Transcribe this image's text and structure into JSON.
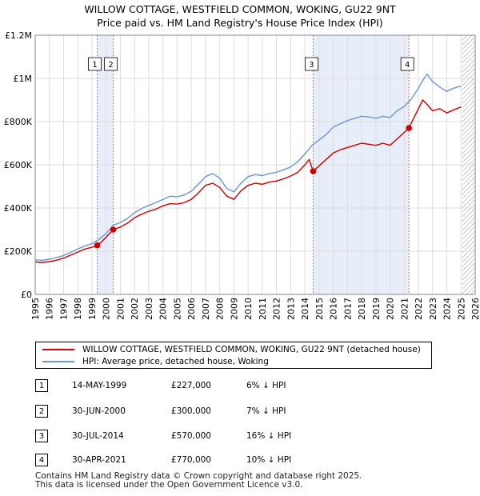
{
  "title_line1": "WILLOW COTTAGE, WESTFIELD COMMON, WOKING, GU22 9NT",
  "title_line2": "Price paid vs. HM Land Registry's House Price Index (HPI)",
  "chart_data": {
    "type": "line",
    "title": "Price paid vs. HM Land Registry's House Price Index (HPI)",
    "xlabel": "",
    "ylabel": "",
    "xlim": [
      1995,
      2026
    ],
    "ylim": [
      0,
      1200000
    ],
    "y_ticks": [
      0,
      200000,
      400000,
      600000,
      800000,
      1000000,
      1200000
    ],
    "y_tick_labels": [
      "£0",
      "£200K",
      "£400K",
      "£600K",
      "£800K",
      "£1M",
      "£1.2M"
    ],
    "x_ticks": [
      1995,
      1996,
      1997,
      1998,
      1999,
      2000,
      2001,
      2002,
      2003,
      2004,
      2005,
      2006,
      2007,
      2008,
      2009,
      2010,
      2011,
      2012,
      2013,
      2014,
      2015,
      2016,
      2017,
      2018,
      2019,
      2020,
      2021,
      2022,
      2023,
      2024,
      2025,
      2026
    ],
    "x_tick_labels": [
      "1995",
      "1996",
      "1997",
      "1998",
      "1999",
      "2000",
      "2001",
      "2002",
      "2003",
      "2004",
      "2005",
      "2006",
      "2007",
      "2008",
      "2009",
      "2010",
      "2011",
      "2012",
      "2013",
      "2014",
      "2015",
      "2016",
      "2017",
      "2018",
      "2019",
      "2020",
      "2021",
      "2022",
      "2023",
      "2024",
      "2025",
      "2026"
    ],
    "grid": true,
    "shaded_ranges": [
      [
        1999.37,
        2000.5
      ],
      [
        2014.58,
        2021.33
      ]
    ],
    "future_hatch_from": 2025.1,
    "series": [
      {
        "name": "WILLOW COTTAGE, WESTFIELD COMMON, WOKING, GU22 9NT (detached house)",
        "color": "#cc0000",
        "x": [
          1995.0,
          1995.5,
          1996.0,
          1996.5,
          1997.0,
          1997.5,
          1998.0,
          1998.5,
          1999.0,
          1999.37,
          1999.7,
          2000.0,
          2000.5,
          2001.0,
          2001.5,
          2002.0,
          2002.5,
          2003.0,
          2003.5,
          2004.0,
          2004.5,
          2005.0,
          2005.5,
          2006.0,
          2006.5,
          2007.0,
          2007.5,
          2008.0,
          2008.5,
          2009.0,
          2009.5,
          2010.0,
          2010.5,
          2011.0,
          2011.5,
          2012.0,
          2012.5,
          2013.0,
          2013.5,
          2014.0,
          2014.3,
          2014.58,
          2015.0,
          2015.5,
          2016.0,
          2016.5,
          2017.0,
          2017.5,
          2018.0,
          2018.5,
          2019.0,
          2019.5,
          2020.0,
          2020.5,
          2021.0,
          2021.33,
          2021.7,
          2022.0,
          2022.3,
          2022.6,
          2023.0,
          2023.5,
          2024.0,
          2024.5,
          2025.0
        ],
        "values": [
          150000,
          148000,
          152000,
          158000,
          168000,
          182000,
          196000,
          210000,
          218000,
          227000,
          245000,
          265000,
          300000,
          312000,
          330000,
          355000,
          372000,
          385000,
          395000,
          410000,
          420000,
          418000,
          425000,
          440000,
          470000,
          505000,
          515000,
          495000,
          455000,
          440000,
          480000,
          505000,
          515000,
          510000,
          520000,
          525000,
          535000,
          548000,
          565000,
          600000,
          625000,
          570000,
          595000,
          625000,
          655000,
          670000,
          680000,
          690000,
          700000,
          695000,
          690000,
          700000,
          690000,
          720000,
          750000,
          770000,
          820000,
          860000,
          900000,
          880000,
          850000,
          860000,
          840000,
          855000,
          868000
        ]
      },
      {
        "name": "HPI: Average price, detached house, Woking",
        "color": "#6b96cf",
        "x": [
          1995.0,
          1995.5,
          1996.0,
          1996.5,
          1997.0,
          1997.5,
          1998.0,
          1998.5,
          1999.0,
          1999.5,
          2000.0,
          2000.5,
          2001.0,
          2001.5,
          2002.0,
          2002.5,
          2003.0,
          2003.5,
          2004.0,
          2004.5,
          2005.0,
          2005.5,
          2006.0,
          2006.5,
          2007.0,
          2007.5,
          2008.0,
          2008.5,
          2009.0,
          2009.5,
          2010.0,
          2010.5,
          2011.0,
          2011.5,
          2012.0,
          2012.5,
          2013.0,
          2013.5,
          2014.0,
          2014.5,
          2015.0,
          2015.5,
          2016.0,
          2016.5,
          2017.0,
          2017.5,
          2018.0,
          2018.5,
          2019.0,
          2019.5,
          2020.0,
          2020.5,
          2021.0,
          2021.5,
          2022.0,
          2022.3,
          2022.6,
          2023.0,
          2023.5,
          2024.0,
          2024.5,
          2025.0
        ],
        "values": [
          160000,
          158000,
          163000,
          170000,
          180000,
          195000,
          210000,
          225000,
          235000,
          255000,
          282000,
          320000,
          333000,
          352000,
          378000,
          398000,
          412000,
          425000,
          440000,
          455000,
          452000,
          460000,
          478000,
          510000,
          545000,
          560000,
          538000,
          490000,
          475000,
          515000,
          545000,
          555000,
          550000,
          560000,
          565000,
          577000,
          590000,
          615000,
          650000,
          690000,
          715000,
          740000,
          775000,
          790000,
          805000,
          815000,
          825000,
          822000,
          815000,
          825000,
          818000,
          850000,
          870000,
          905000,
          955000,
          990000,
          1020000,
          985000,
          960000,
          940000,
          955000,
          965000
        ]
      }
    ],
    "markers": [
      {
        "label": "1",
        "x": 1999.37,
        "value": 227000
      },
      {
        "label": "2",
        "x": 2000.5,
        "value": 300000
      },
      {
        "label": "3",
        "x": 2014.58,
        "value": 570000
      },
      {
        "label": "4",
        "x": 2021.33,
        "value": 770000
      }
    ]
  },
  "legend": {
    "property_label": "WILLOW COTTAGE, WESTFIELD COMMON, WOKING, GU22 9NT (detached house)",
    "hpi_label": "HPI: Average price, detached house, Woking",
    "property_color": "#cc0000",
    "hpi_color": "#6b96cf"
  },
  "transactions": [
    {
      "num": "1",
      "date": "14-MAY-1999",
      "price": "£227,000",
      "hpi": "6% ↓ HPI"
    },
    {
      "num": "2",
      "date": "30-JUN-2000",
      "price": "£300,000",
      "hpi": "7% ↓ HPI"
    },
    {
      "num": "3",
      "date": "30-JUL-2014",
      "price": "£570,000",
      "hpi": "16% ↓ HPI"
    },
    {
      "num": "4",
      "date": "30-APR-2021",
      "price": "£770,000",
      "hpi": "10% ↓ HPI"
    }
  ],
  "footer_line1": "Contains HM Land Registry data © Crown copyright and database right 2025.",
  "footer_line2": "This data is licensed under the Open Government Licence v3.0."
}
